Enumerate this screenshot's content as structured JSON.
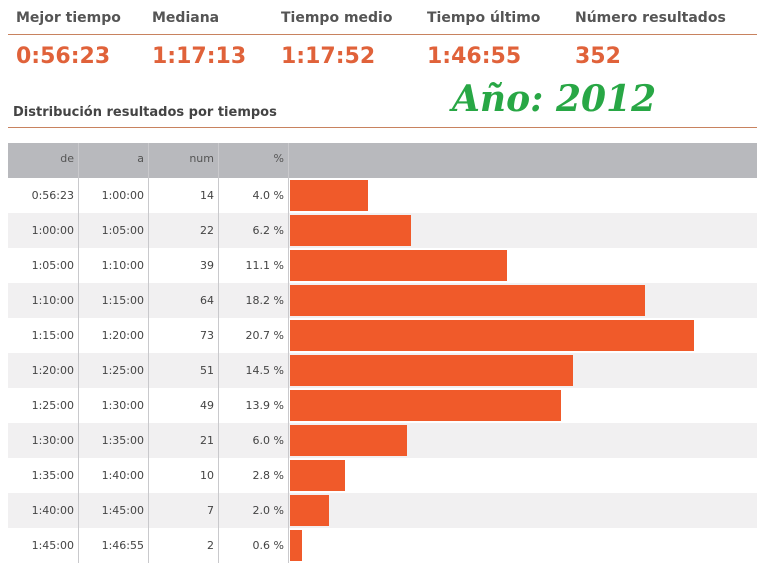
{
  "stats": [
    {
      "label": "Mejor tiempo",
      "value": "0:56:23"
    },
    {
      "label": "Mediana",
      "value": "1:17:13"
    },
    {
      "label": "Tiempo medio",
      "value": "1:17:52"
    },
    {
      "label": "Tiempo último",
      "value": "1:46:55"
    },
    {
      "label": "Número resultados",
      "value": "352"
    }
  ],
  "section_title": "Distribución resultados por tiempos",
  "year_label": "Año: 2012",
  "colors": {
    "accent": "#e0623a",
    "bar": "#f05a2a",
    "year": "#28a745",
    "header": "#b8b9bd"
  },
  "chart_data": {
    "type": "bar",
    "orientation": "horizontal",
    "columns": [
      "de",
      "a",
      "num",
      "%"
    ],
    "rows": [
      {
        "de": "0:56:23",
        "a": "1:00:00",
        "num": 14,
        "pct": "4.0 %",
        "value": 4.0
      },
      {
        "de": "1:00:00",
        "a": "1:05:00",
        "num": 22,
        "pct": "6.2 %",
        "value": 6.2
      },
      {
        "de": "1:05:00",
        "a": "1:10:00",
        "num": 39,
        "pct": "11.1 %",
        "value": 11.1
      },
      {
        "de": "1:10:00",
        "a": "1:15:00",
        "num": 64,
        "pct": "18.2 %",
        "value": 18.2
      },
      {
        "de": "1:15:00",
        "a": "1:20:00",
        "num": 73,
        "pct": "20.7 %",
        "value": 20.7
      },
      {
        "de": "1:20:00",
        "a": "1:25:00",
        "num": 51,
        "pct": "14.5 %",
        "value": 14.5
      },
      {
        "de": "1:25:00",
        "a": "1:30:00",
        "num": 49,
        "pct": "13.9 %",
        "value": 13.9
      },
      {
        "de": "1:30:00",
        "a": "1:35:00",
        "num": 21,
        "pct": "6.0 %",
        "value": 6.0
      },
      {
        "de": "1:35:00",
        "a": "1:40:00",
        "num": 10,
        "pct": "2.8 %",
        "value": 2.8
      },
      {
        "de": "1:40:00",
        "a": "1:45:00",
        "num": 7,
        "pct": "2.0 %",
        "value": 2.0
      },
      {
        "de": "1:45:00",
        "a": "1:46:55",
        "num": 2,
        "pct": "0.6 %",
        "value": 0.6
      }
    ]
  }
}
